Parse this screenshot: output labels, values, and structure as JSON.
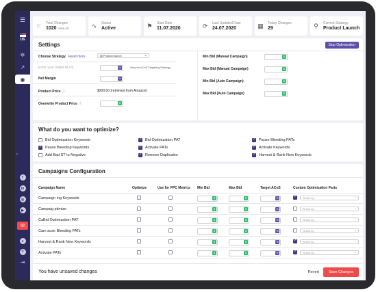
{
  "sidebar": {
    "country": "US",
    "icons": [
      "menu-icon",
      "flag-icon",
      "settings-icon",
      "chart-icon",
      "target-icon",
      "facebook-icon",
      "linkedin-icon",
      "instagram-icon",
      "youtube-icon",
      "mail-icon",
      "user-icon",
      "help-icon",
      "logout-icon"
    ]
  },
  "stats": [
    {
      "label": "Total Changes",
      "value": "1020",
      "link": "View All",
      "icon": "grid-icon"
    },
    {
      "label": "Status",
      "value": "Active",
      "icon": "pulse-icon"
    },
    {
      "label": "Start Date",
      "value": "11.07.2020",
      "icon": "flag-icon"
    },
    {
      "label": "Last Updated Date",
      "value": "24.07.2020",
      "icon": "refresh-icon"
    },
    {
      "label": "Today Changes",
      "value": "29",
      "icon": "calendar-icon"
    },
    {
      "label": "Current Strategy",
      "value": "Product Launch",
      "icon": "strategy-icon"
    }
  ],
  "settings": {
    "title": "Settings",
    "stop_label": "Stop Optimization",
    "choose_strategy": "Choose Strategy",
    "read_more": "Read more",
    "strategy_value": "Product launch",
    "acos_placeholder": "Enter your target ACoS",
    "acos_note": "Only for ACoS Targeting Strategy",
    "net_margin": "Net Margin",
    "product_price": "Product Price",
    "product_price_value": "$200.00 (retrieved from Amazon)",
    "overwrite_price": "Overwrite Product Price",
    "min_bid_manual": "Min Bid (Manual Campaign)",
    "max_bid_manual": "Max Bid (Manual Campaign)",
    "min_bid_auto": "Min Bid (Auto Campaign)",
    "max_bid_auto": "Max Bid (Auto Campaign)",
    "default_input": "0"
  },
  "optimize": {
    "title": "What do you want to optimize?",
    "options": [
      {
        "label": "Bid Optimization Keywords",
        "checked": false
      },
      {
        "label": "Pause Bleeding Keywords",
        "checked": true
      },
      {
        "label": "Add Bad ST to Negative",
        "checked": false
      },
      {
        "label": "Bid Optimization PAT",
        "checked": true
      },
      {
        "label": "Activate PATs",
        "checked": true
      },
      {
        "label": "Remove Duplicates",
        "checked": true
      },
      {
        "label": "Pause Bleeding PATs",
        "checked": true
      },
      {
        "label": "Activate Keywords",
        "checked": true
      },
      {
        "label": "Harvest & Rank New Keywords",
        "checked": true
      }
    ]
  },
  "campaigns": {
    "title": "Campaigns Configuration",
    "headers": [
      "Campaign Name",
      "Optimize",
      "Use for PPC Metrics",
      "Min Bid",
      "Max Bid",
      "Target ACoS",
      "Custom Optimization Parts"
    ],
    "select_placeholder": "Select by",
    "rows": [
      {
        "name": "Campaign ing Keywords",
        "custom": true
      },
      {
        "name": "Campaig ptimize",
        "custom": false
      },
      {
        "name": "CaBid Optimization PAT",
        "custom": false
      },
      {
        "name": "Cam ause Bleeding PATs",
        "custom": false
      },
      {
        "name": "Harvest & Rank New Keywords",
        "custom": true
      },
      {
        "name": "Activate PATs",
        "custom": true
      }
    ]
  },
  "footer": {
    "unsaved": "You have unsaved changes",
    "revert": "Revert",
    "save": "Save Changes"
  }
}
